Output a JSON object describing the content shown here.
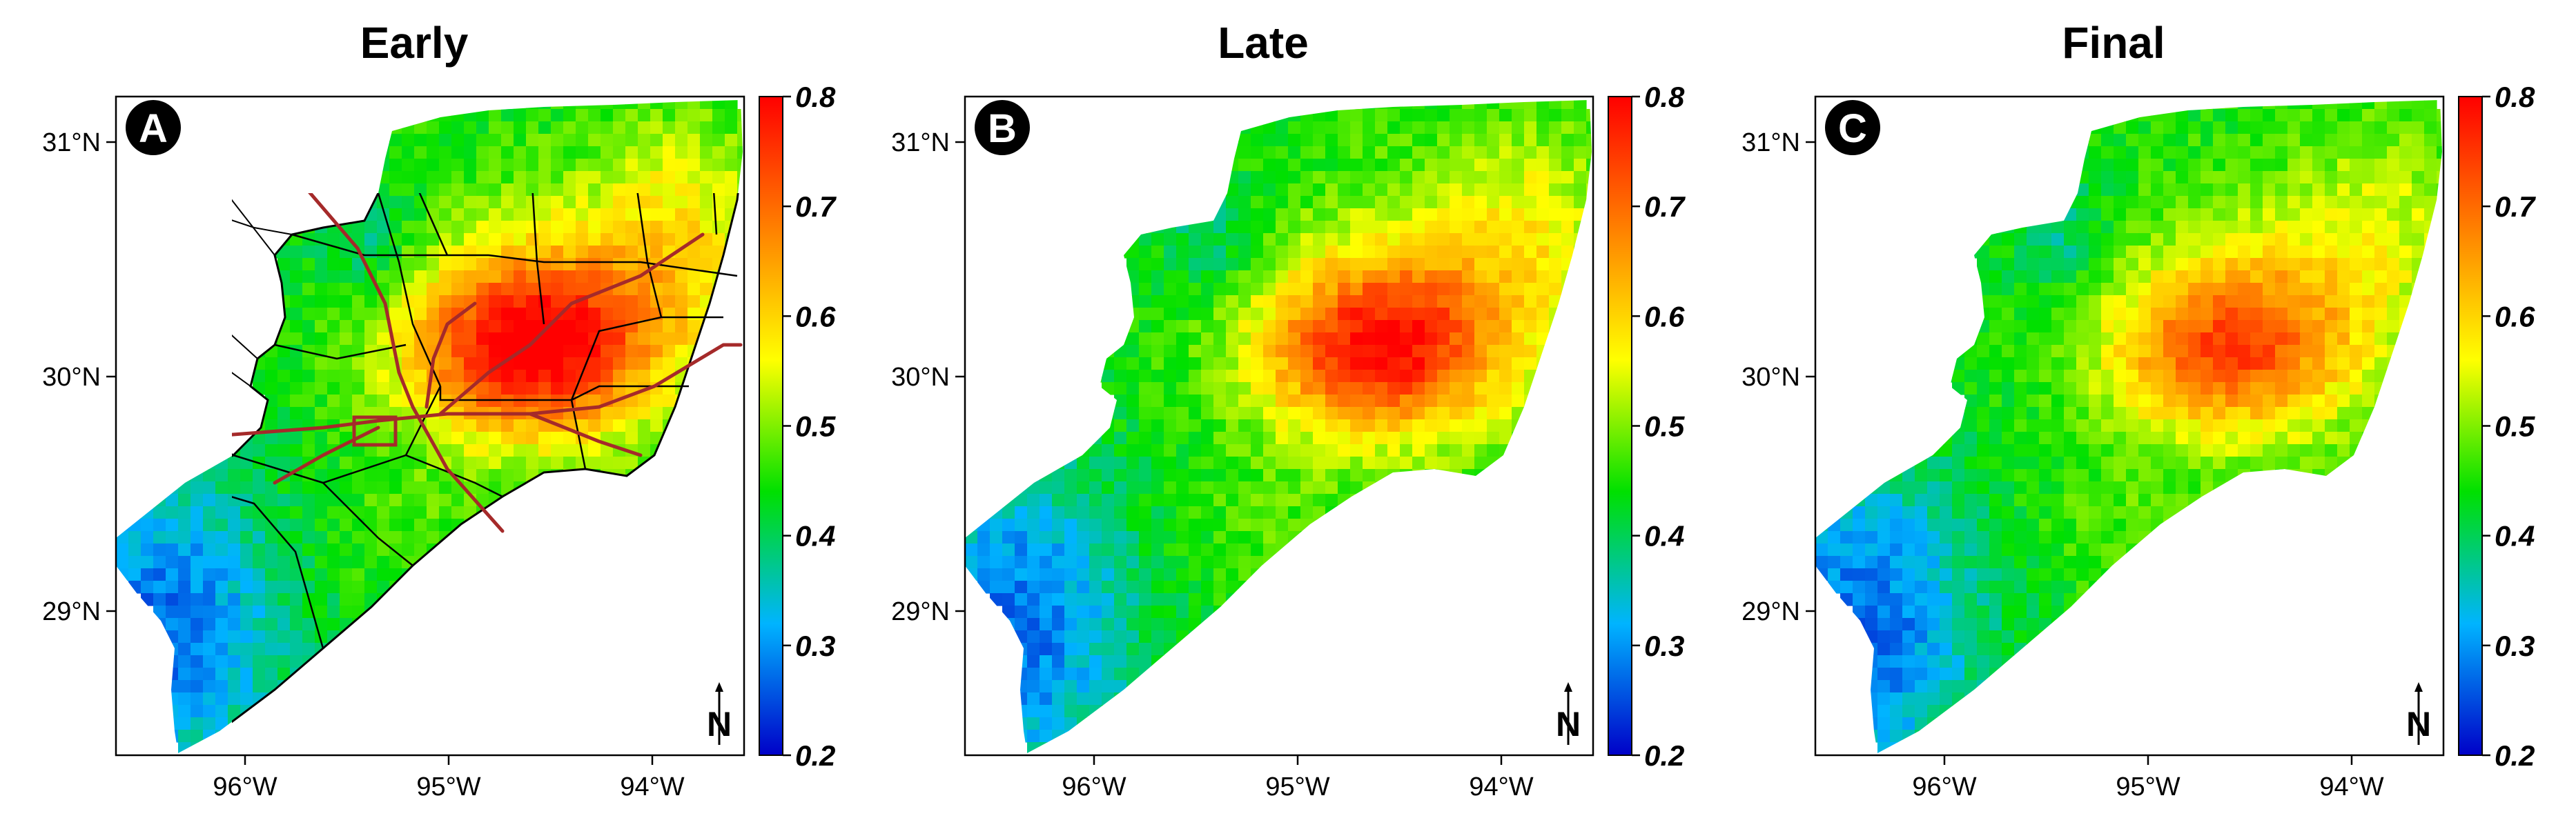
{
  "panels": [
    {
      "id": "early",
      "title": "Early",
      "badge": "A",
      "north": "N",
      "hotspot_strength": 1.0,
      "lat_ticks": [
        "31°N",
        "30°N",
        "29°N"
      ],
      "lon_ticks": [
        "96°W",
        "95°W",
        "94°W"
      ],
      "colorbar_ticks": [
        "0.8",
        "0.7",
        "0.6",
        "0.5",
        "0.4",
        "0.3",
        "0.2"
      ]
    },
    {
      "id": "late",
      "title": "Late",
      "badge": "B",
      "north": "N",
      "hotspot_strength": 0.9,
      "lat_ticks": [
        "31°N",
        "30°N",
        "29°N"
      ],
      "lon_ticks": [
        "96°W",
        "95°W",
        "94°W"
      ],
      "colorbar_ticks": [
        "0.8",
        "0.7",
        "0.6",
        "0.5",
        "0.4",
        "0.3",
        "0.2"
      ]
    },
    {
      "id": "final",
      "title": "Final",
      "badge": "C",
      "north": "N",
      "hotspot_strength": 0.75,
      "lat_ticks": [
        "31°N",
        "30°N",
        "29°N"
      ],
      "lon_ticks": [
        "96°W",
        "95°W",
        "94°W"
      ],
      "colorbar_ticks": [
        "0.8",
        "0.7",
        "0.6",
        "0.5",
        "0.4",
        "0.3",
        "0.2"
      ]
    }
  ],
  "colorbar": {
    "min": 0.2,
    "max": 0.8,
    "stops": [
      "#0000c8",
      "#00b4ff",
      "#00e000",
      "#ffff00",
      "#ff8000",
      "#ff0000"
    ]
  },
  "colors": {
    "highway": "#a52a2a",
    "county_border": "#000000",
    "background": "#ffffff"
  }
}
